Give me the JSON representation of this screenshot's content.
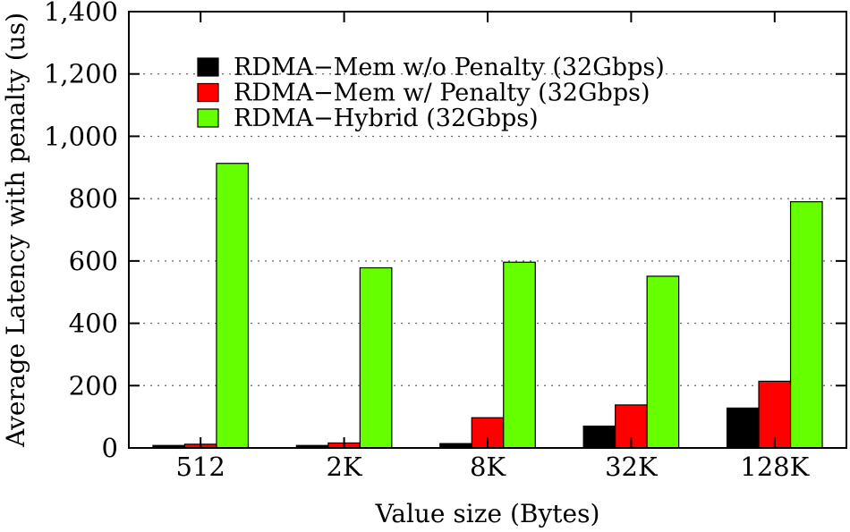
{
  "chart_data": {
    "type": "bar",
    "xlabel": "Value size (Bytes)",
    "ylabel": "Average Latency with penalty (us)",
    "ylim": [
      0,
      1400
    ],
    "yticks": [
      0,
      200,
      400,
      600,
      800,
      1000,
      1200,
      1400
    ],
    "ytick_labels": [
      "0",
      "200",
      "400",
      "600",
      "800",
      "1,000",
      "1,200",
      "1,400"
    ],
    "categories": [
      "512",
      "2K",
      "8K",
      "32K",
      "128K"
    ],
    "grid": "horizontal dotted",
    "legend_position": "top-left",
    "series": [
      {
        "name": "RDMA−Mem w/o Penalty (32Gbps)",
        "color": "#000000",
        "values": [
          8,
          8,
          14,
          70,
          128
        ]
      },
      {
        "name": "RDMA−Mem w/ Penalty (32Gbps)",
        "color": "#ff0000",
        "values": [
          12,
          16,
          97,
          138,
          214
        ]
      },
      {
        "name": "RDMA−Hybrid (32Gbps)",
        "color": "#66ff00",
        "values": [
          913,
          578,
          596,
          551,
          790
        ]
      }
    ]
  }
}
